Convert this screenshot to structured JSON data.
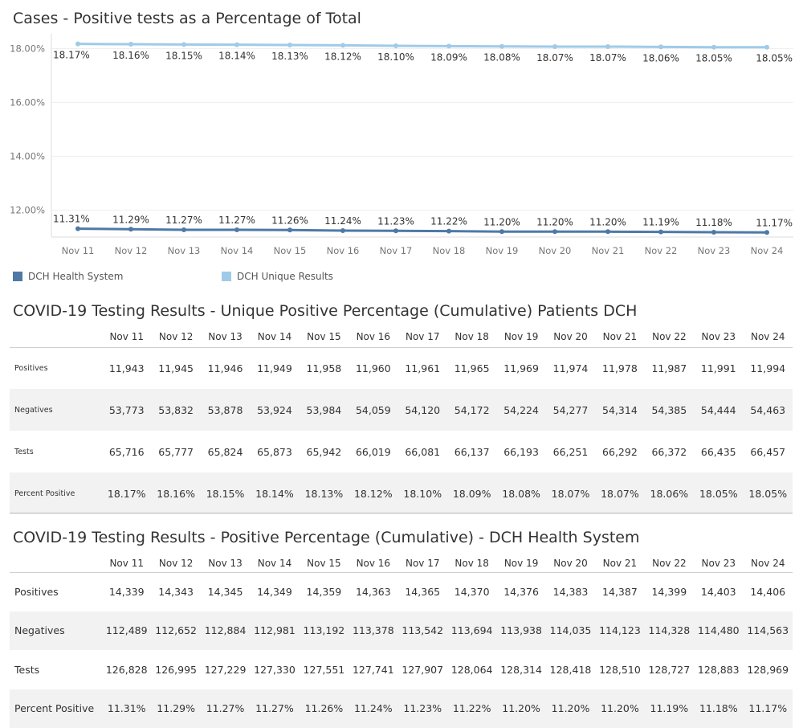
{
  "chart": {
    "title": "Cases - Positive tests as a Percentage of Total"
  },
  "chart_data": {
    "type": "line",
    "title": "Cases - Positive tests as a Percentage of Total",
    "categories": [
      "Nov 11",
      "Nov 12",
      "Nov 13",
      "Nov 14",
      "Nov 15",
      "Nov 16",
      "Nov 17",
      "Nov 18",
      "Nov 19",
      "Nov 20",
      "Nov 21",
      "Nov 22",
      "Nov 23",
      "Nov 24"
    ],
    "yticks": [
      "12.00%",
      "14.00%",
      "16.00%",
      "18.00%"
    ],
    "ylim": [
      11.0,
      18.25
    ],
    "series": [
      {
        "name": "DCH Health System",
        "color": "#4e79a7",
        "values": [
          11.31,
          11.29,
          11.27,
          11.27,
          11.26,
          11.24,
          11.23,
          11.22,
          11.2,
          11.2,
          11.2,
          11.19,
          11.18,
          11.17
        ],
        "labels": [
          "11.31%",
          "11.29%",
          "11.27%",
          "11.27%",
          "11.26%",
          "11.24%",
          "11.23%",
          "11.22%",
          "11.20%",
          "11.20%",
          "11.20%",
          "11.19%",
          "11.18%",
          "11.17%"
        ]
      },
      {
        "name": "DCH Unique Results",
        "color": "#a0cbe8",
        "values": [
          18.17,
          18.16,
          18.15,
          18.14,
          18.13,
          18.12,
          18.1,
          18.09,
          18.08,
          18.07,
          18.07,
          18.06,
          18.05,
          18.05
        ],
        "labels": [
          "18.17%",
          "18.16%",
          "18.15%",
          "18.14%",
          "18.13%",
          "18.12%",
          "18.10%",
          "18.09%",
          "18.08%",
          "18.07%",
          "18.07%",
          "18.06%",
          "18.05%",
          "18.05%"
        ]
      }
    ],
    "grid": true,
    "legend_position": "bottom-left"
  },
  "legend": [
    {
      "label": "DCH Health System",
      "color": "#4e79a7"
    },
    {
      "label": "DCH Unique Results",
      "color": "#a0cbe8"
    }
  ],
  "table1": {
    "title": "COVID-19 Testing Results - Unique Positive Percentage (Cumulative) Patients DCH",
    "columns": [
      "Nov 11",
      "Nov 12",
      "Nov 13",
      "Nov 14",
      "Nov 15",
      "Nov 16",
      "Nov 17",
      "Nov 18",
      "Nov 19",
      "Nov 20",
      "Nov 21",
      "Nov 22",
      "Nov 23",
      "Nov 24"
    ],
    "rows": [
      {
        "label": "Positives",
        "values": [
          "11,943",
          "11,945",
          "11,946",
          "11,949",
          "11,958",
          "11,960",
          "11,961",
          "11,965",
          "11,969",
          "11,974",
          "11,978",
          "11,987",
          "11,991",
          "11,994"
        ]
      },
      {
        "label": "Negatives",
        "values": [
          "53,773",
          "53,832",
          "53,878",
          "53,924",
          "53,984",
          "54,059",
          "54,120",
          "54,172",
          "54,224",
          "54,277",
          "54,314",
          "54,385",
          "54,444",
          "54,463"
        ]
      },
      {
        "label": "Tests",
        "values": [
          "65,716",
          "65,777",
          "65,824",
          "65,873",
          "65,942",
          "66,019",
          "66,081",
          "66,137",
          "66,193",
          "66,251",
          "66,292",
          "66,372",
          "66,435",
          "66,457"
        ]
      },
      {
        "label": "Percent Positive",
        "values": [
          "18.17%",
          "18.16%",
          "18.15%",
          "18.14%",
          "18.13%",
          "18.12%",
          "18.10%",
          "18.09%",
          "18.08%",
          "18.07%",
          "18.07%",
          "18.06%",
          "18.05%",
          "18.05%"
        ]
      }
    ]
  },
  "table2": {
    "title": "COVID-19 Testing Results - Positive Percentage (Cumulative) - DCH Health System",
    "columns": [
      "Nov 11",
      "Nov 12",
      "Nov 13",
      "Nov 14",
      "Nov 15",
      "Nov 16",
      "Nov 17",
      "Nov 18",
      "Nov 19",
      "Nov 20",
      "Nov 21",
      "Nov 22",
      "Nov 23",
      "Nov 24"
    ],
    "rows": [
      {
        "label": "Positives",
        "values": [
          "14,339",
          "14,343",
          "14,345",
          "14,349",
          "14,359",
          "14,363",
          "14,365",
          "14,370",
          "14,376",
          "14,383",
          "14,387",
          "14,399",
          "14,403",
          "14,406"
        ]
      },
      {
        "label": "Negatives",
        "values": [
          "112,489",
          "112,652",
          "112,884",
          "112,981",
          "113,192",
          "113,378",
          "113,542",
          "113,694",
          "113,938",
          "114,035",
          "114,123",
          "114,328",
          "114,480",
          "114,563"
        ]
      },
      {
        "label": "Tests",
        "values": [
          "126,828",
          "126,995",
          "127,229",
          "127,330",
          "127,551",
          "127,741",
          "127,907",
          "128,064",
          "128,314",
          "128,418",
          "128,510",
          "128,727",
          "128,883",
          "128,969"
        ]
      },
      {
        "label": "Percent Positive",
        "values": [
          "11.31%",
          "11.29%",
          "11.27%",
          "11.27%",
          "11.26%",
          "11.24%",
          "11.23%",
          "11.22%",
          "11.20%",
          "11.20%",
          "11.20%",
          "11.19%",
          "11.18%",
          "11.17%"
        ]
      }
    ]
  }
}
